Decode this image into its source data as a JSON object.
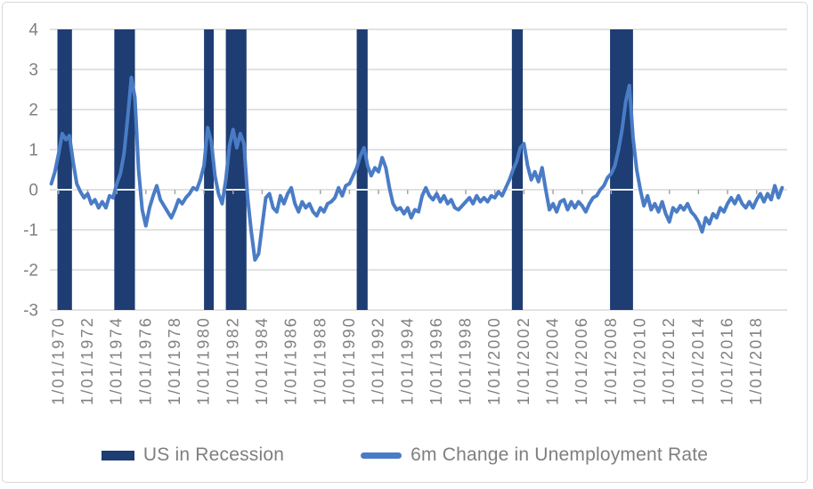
{
  "chart_data": {
    "type": "line",
    "title": "",
    "xlabel": "",
    "ylabel": "",
    "grid": "horizontal",
    "legend_position": "bottom",
    "colors": {
      "recession_bar": "#1d3d73",
      "line": "#4a7cc6",
      "gridline": "#d9d9d9",
      "axis_text": "#808080",
      "tick_mark": "#a6a6a6",
      "zero_line_on_bar": "#ffffff",
      "card_border": "#d8d8d8"
    },
    "x_domain": [
      1969.4,
      2020.1
    ],
    "x_axis": {
      "tick_labels": [
        "1/01/1970",
        "1/01/1972",
        "1/01/1974",
        "1/01/1976",
        "1/01/1978",
        "1/01/1980",
        "1/01/1982",
        "1/01/1984",
        "1/01/1986",
        "1/01/1988",
        "1/01/1990",
        "1/01/1992",
        "1/01/1994",
        "1/01/1996",
        "1/01/1998",
        "1/01/2000",
        "1/01/2002",
        "1/01/2004",
        "1/01/2006",
        "1/01/2008",
        "1/01/2010",
        "1/01/2012",
        "1/01/2014",
        "1/01/2016",
        "1/01/2018"
      ]
    },
    "y_axis": {
      "ticks": [
        4,
        3,
        2,
        1,
        0,
        -1,
        -2,
        -3
      ],
      "range": [
        -3,
        4
      ]
    },
    "recessions": {
      "name": "US in Recession",
      "periods": [
        [
          1969.92,
          1970.92
        ],
        [
          1973.83,
          1975.25
        ],
        [
          1980.0,
          1980.67
        ],
        [
          1981.5,
          1982.92
        ],
        [
          1990.5,
          1991.25
        ],
        [
          2001.17,
          2001.92
        ],
        [
          2007.92,
          2009.5
        ]
      ]
    },
    "series": [
      {
        "name": "6m Change in Unemployment Rate",
        "resolution": "quarterly (values estimated from plot)",
        "x_start": 1969.5,
        "x_step": 0.25,
        "values": [
          0.15,
          0.45,
          0.9,
          1.4,
          1.25,
          1.35,
          0.7,
          0.15,
          -0.05,
          -0.2,
          -0.1,
          -0.35,
          -0.25,
          -0.45,
          -0.3,
          -0.45,
          -0.15,
          -0.2,
          0.15,
          0.4,
          0.9,
          1.8,
          2.8,
          2.3,
          0.5,
          -0.5,
          -0.9,
          -0.45,
          -0.15,
          0.1,
          -0.25,
          -0.4,
          -0.55,
          -0.7,
          -0.5,
          -0.25,
          -0.35,
          -0.2,
          -0.1,
          0.05,
          0.0,
          0.25,
          0.6,
          1.55,
          1.2,
          0.35,
          -0.1,
          -0.35,
          0.25,
          1.1,
          1.5,
          1.05,
          1.4,
          1.15,
          -0.2,
          -1.05,
          -1.75,
          -1.6,
          -0.9,
          -0.2,
          -0.1,
          -0.45,
          -0.55,
          -0.15,
          -0.35,
          -0.1,
          0.05,
          -0.35,
          -0.55,
          -0.3,
          -0.45,
          -0.35,
          -0.55,
          -0.65,
          -0.45,
          -0.55,
          -0.35,
          -0.3,
          -0.2,
          0.05,
          -0.15,
          0.1,
          0.15,
          0.35,
          0.55,
          0.85,
          1.05,
          0.6,
          0.35,
          0.55,
          0.45,
          0.8,
          0.55,
          0.05,
          -0.35,
          -0.5,
          -0.45,
          -0.6,
          -0.45,
          -0.7,
          -0.5,
          -0.55,
          -0.15,
          0.05,
          -0.15,
          -0.25,
          -0.1,
          -0.3,
          -0.15,
          -0.35,
          -0.25,
          -0.45,
          -0.5,
          -0.4,
          -0.3,
          -0.2,
          -0.35,
          -0.15,
          -0.3,
          -0.2,
          -0.3,
          -0.15,
          -0.2,
          -0.05,
          -0.15,
          0.05,
          0.25,
          0.5,
          0.7,
          1.05,
          1.15,
          0.6,
          0.25,
          0.45,
          0.2,
          0.55,
          0.0,
          -0.5,
          -0.35,
          -0.55,
          -0.3,
          -0.25,
          -0.5,
          -0.3,
          -0.45,
          -0.3,
          -0.4,
          -0.55,
          -0.35,
          -0.2,
          -0.15,
          0.0,
          0.1,
          0.3,
          0.4,
          0.6,
          1.0,
          1.5,
          2.2,
          2.6,
          1.3,
          0.5,
          0.0,
          -0.4,
          -0.15,
          -0.5,
          -0.35,
          -0.55,
          -0.3,
          -0.6,
          -0.8,
          -0.45,
          -0.55,
          -0.4,
          -0.5,
          -0.35,
          -0.55,
          -0.65,
          -0.8,
          -1.05,
          -0.7,
          -0.85,
          -0.6,
          -0.7,
          -0.45,
          -0.55,
          -0.35,
          -0.2,
          -0.35,
          -0.15,
          -0.35,
          -0.45,
          -0.3,
          -0.45,
          -0.25,
          -0.1,
          -0.3,
          -0.1,
          -0.25,
          0.1,
          -0.2,
          0.05
        ]
      }
    ],
    "legend": [
      {
        "label": "US in Recession",
        "type": "bar"
      },
      {
        "label": "6m Change in Unemployment Rate",
        "type": "line"
      }
    ]
  }
}
